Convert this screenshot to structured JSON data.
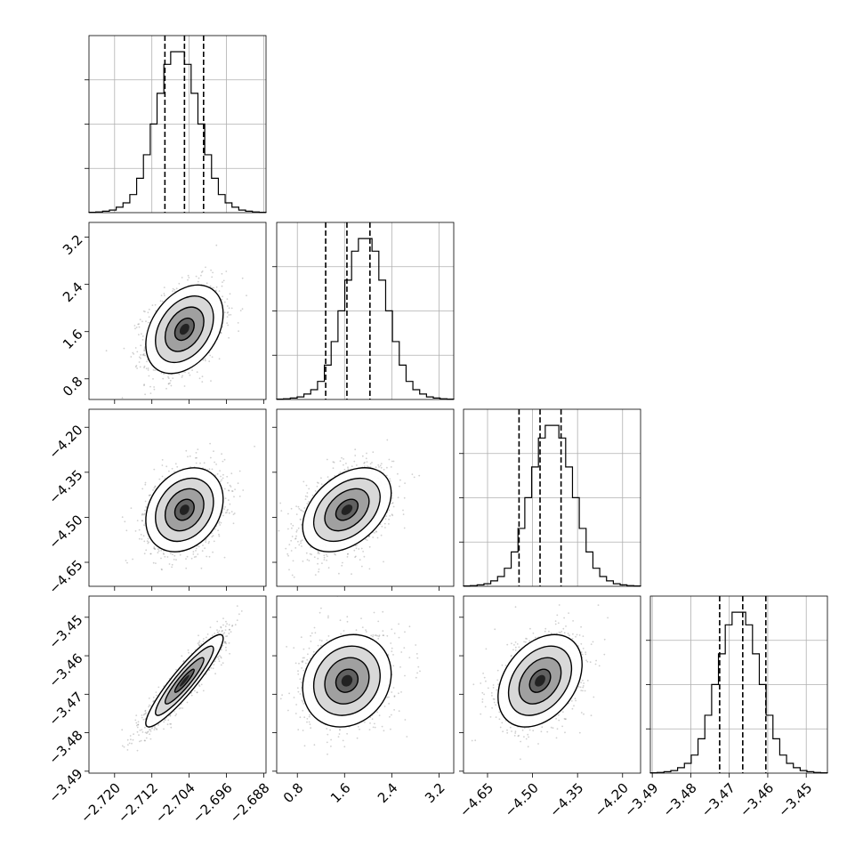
{
  "colors": {
    "background": "#ffffff",
    "line": "#000000",
    "grid": "#b0b0b0",
    "scatter": "#777777",
    "contour_levels": [
      "#ffffff",
      "#d4d4d4",
      "#9a9a9a",
      "#5a5a5a",
      "#222222"
    ]
  },
  "chart_data": {
    "type": "corner",
    "grid": true,
    "parameters": [
      {
        "label": "",
        "range": [
          -2.7255,
          -2.6875
        ],
        "ticks": [
          -2.72,
          -2.712,
          -2.704,
          -2.696,
          -2.688
        ],
        "tick_labels": [
          "−2.720",
          "−2.712",
          "−2.704",
          "−2.696",
          "−2.688"
        ],
        "quantiles": [
          -2.7092,
          -2.705,
          -2.7009
        ],
        "hist_counts": [
          1,
          2,
          4,
          7,
          15,
          27,
          50,
          95,
          160,
          245,
          330,
          410,
          445,
          445,
          410,
          330,
          245,
          160,
          95,
          50,
          27,
          15,
          7,
          4,
          2,
          1
        ]
      },
      {
        "label": "",
        "range": [
          0.45,
          3.45
        ],
        "ticks": [
          0.8,
          1.6,
          2.4,
          3.2
        ],
        "tick_labels": [
          "0.8",
          "1.6",
          "2.4",
          "3.2"
        ],
        "quantiles": [
          1.28,
          1.64,
          2.03
        ],
        "hist_counts": [
          1,
          2,
          4,
          7,
          15,
          27,
          50,
          95,
          160,
          245,
          330,
          410,
          445,
          445,
          410,
          330,
          245,
          160,
          95,
          50,
          27,
          15,
          7,
          4,
          2,
          1
        ]
      },
      {
        "label": "",
        "range": [
          -4.73,
          -4.14
        ],
        "ticks": [
          -4.65,
          -4.5,
          -4.35,
          -4.2
        ],
        "tick_labels": [
          "−4.65",
          "−4.50",
          "−4.35",
          "−4.20"
        ],
        "quantiles": [
          -4.545,
          -4.475,
          -4.405
        ],
        "hist_counts": [
          1,
          2,
          4,
          7,
          15,
          27,
          50,
          95,
          160,
          245,
          330,
          410,
          445,
          445,
          410,
          330,
          245,
          160,
          95,
          50,
          27,
          15,
          7,
          4,
          2,
          1
        ]
      },
      {
        "label": "",
        "range": [
          -3.4905,
          -3.4445
        ],
        "ticks": [
          -3.49,
          -3.48,
          -3.47,
          -3.46,
          -3.45
        ],
        "tick_labels": [
          "−3.49",
          "−3.48",
          "−3.47",
          "−3.46",
          "−3.45"
        ],
        "quantiles": [
          -3.4725,
          -3.4665,
          -3.4605
        ],
        "hist_counts": [
          1,
          2,
          4,
          7,
          15,
          27,
          50,
          95,
          160,
          245,
          330,
          410,
          445,
          445,
          410,
          330,
          245,
          160,
          95,
          50,
          27,
          15,
          7,
          4,
          2,
          1
        ]
      }
    ],
    "correlations": [
      {
        "x": 0,
        "y": 1,
        "rho": 0.35
      },
      {
        "x": 0,
        "y": 2,
        "rho": 0.25
      },
      {
        "x": 1,
        "y": 2,
        "rho": 0.4
      },
      {
        "x": 0,
        "y": 3,
        "rho": 0.92
      },
      {
        "x": 1,
        "y": 3,
        "rho": 0.15
      },
      {
        "x": 2,
        "y": 3,
        "rho": 0.35
      }
    ],
    "contour_sigmas": [
      0.5,
      1.0,
      1.5,
      2.0
    ]
  }
}
